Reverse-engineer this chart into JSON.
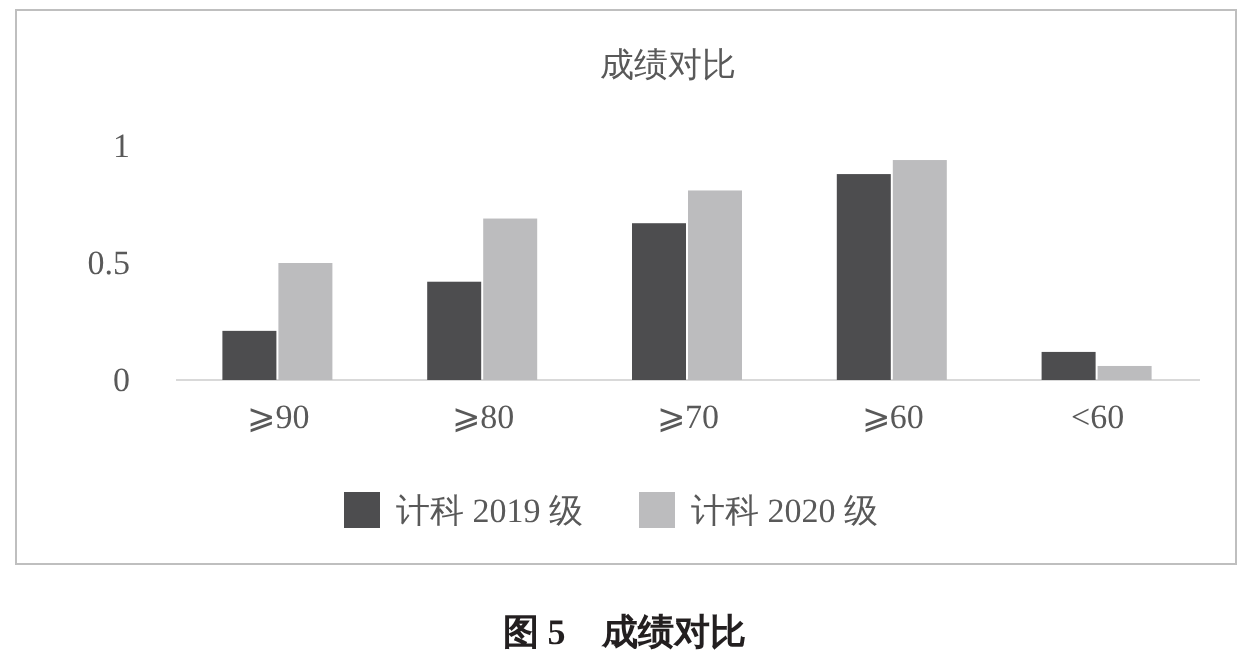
{
  "chart_data": {
    "type": "bar",
    "title": "成绩对比",
    "categories": [
      "⩾90",
      "⩾80",
      "⩾70",
      "⩾60",
      "<60"
    ],
    "series": [
      {
        "name": "计科 2019 级",
        "color": "#4d4d4f",
        "values": [
          0.21,
          0.42,
          0.67,
          0.88,
          0.12
        ]
      },
      {
        "name": "计科 2020 级",
        "color": "#bcbcbe",
        "values": [
          0.5,
          0.69,
          0.81,
          0.94,
          0.06
        ]
      }
    ],
    "ylim": [
      0,
      1
    ],
    "yticks": [
      0,
      0.5,
      1
    ],
    "grid": false,
    "legend": "bottom",
    "annotations": [
      "图 5　成绩对比"
    ]
  }
}
